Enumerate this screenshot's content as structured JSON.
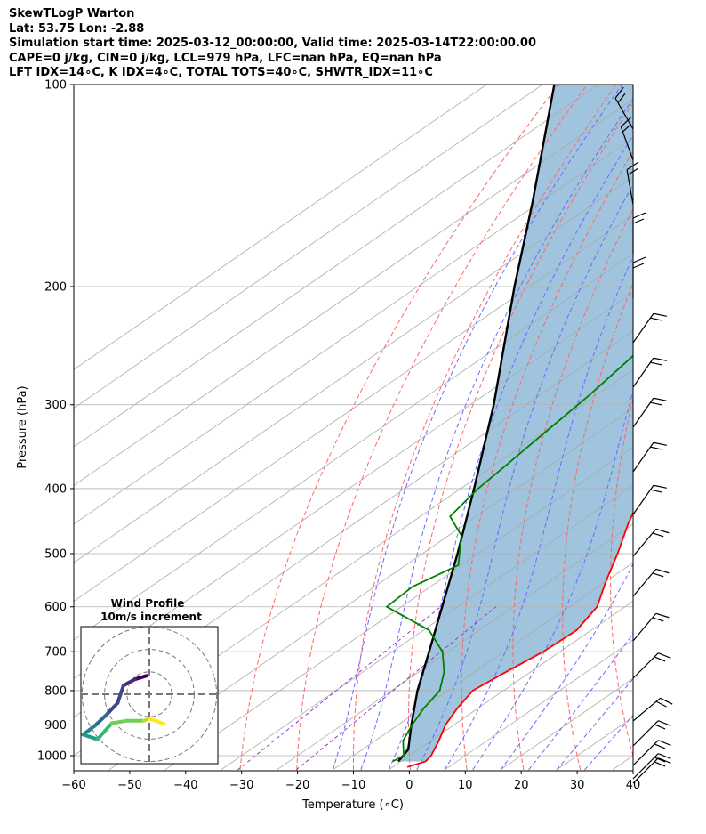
{
  "header": {
    "line1": "SkewTLogP Warton",
    "line2": "Lat: 53.75   Lon: -2.88",
    "line3": "Simulation start time: 2025-03-12_00:00:00, Valid time: 2025-03-14T22:00:00.00",
    "line4": "CAPE=0 j/kg, CIN=0 j/kg, LCL=979 hPa, LFC=nan hPa, EQ=nan hPa",
    "line5": "LFT IDX=14∘C, K IDX=4∘C, TOTAL TOTS=40∘C, SHWTR_IDX=11∘C"
  },
  "colors": {
    "temperature": "#ff0000",
    "dewpoint": "#008000",
    "parcel": "#000000",
    "cape_shade": "#a0c4de",
    "dry_adiabats": "#ff6666",
    "moist_adiabats": "#6a6aff",
    "mixing_ratio": "#9b30cc",
    "isotherms": "#aaaaaa"
  },
  "chart_data": [
    {
      "type": "line",
      "subtype": "skew-t log-p",
      "xlabel": "Temperature (∘C)",
      "ylabel": "Pressure (hPa)",
      "xlim": [
        -60,
        40
      ],
      "ylim": [
        1040,
        100
      ],
      "y_scale": "log",
      "x_ticks": [
        "−60",
        "−50",
        "−40",
        "−30",
        "−20",
        "−10",
        "0",
        "10",
        "20",
        "30",
        "40"
      ],
      "y_ticks": [
        "100",
        "200",
        "300",
        "400",
        "500",
        "600",
        "700",
        "800",
        "900",
        "1000"
      ],
      "grid": true,
      "series": [
        {
          "key": "temperature",
          "points": [
            [
              1040,
              2.6
            ],
            [
              1020,
              4.4
            ],
            [
              1000,
              3.9
            ],
            [
              950,
              1.4
            ],
            [
              900,
              -1.5
            ],
            [
              850,
              -3.7
            ],
            [
              800,
              -5.5
            ],
            [
              750,
              -4.4
            ],
            [
              700,
              -3.0
            ],
            [
              650,
              -2.6
            ],
            [
              600,
              -5.0
            ],
            [
              550,
              -10.0
            ],
            [
              500,
              -15.1
            ],
            [
              450,
              -21.1
            ],
            [
              400,
              -27.1
            ],
            [
              350,
              -35.0
            ],
            [
              310,
              -41.7
            ],
            [
              290,
              -44.0
            ],
            [
              260,
              -45.3
            ],
            [
              230,
              -47.1
            ],
            [
              210,
              -49.2
            ],
            [
              200,
              -49.5
            ],
            [
              185,
              -49.1
            ],
            [
              165,
              -48.5
            ],
            [
              150,
              -48.3
            ],
            [
              140,
              -48.7
            ],
            [
              125,
              -48.1
            ],
            [
              115,
              -46.1
            ],
            [
              100,
              -42.4
            ]
          ]
        },
        {
          "key": "dewpoint",
          "points": [
            [
              1020,
              -1.5
            ],
            [
              1000,
              -1.0
            ],
            [
              950,
              -5.0
            ],
            [
              900,
              -7.5
            ],
            [
              850,
              -9.7
            ],
            [
              800,
              -11.4
            ],
            [
              750,
              -15.5
            ],
            [
              700,
              -21.0
            ],
            [
              650,
              -29.0
            ],
            [
              600,
              -42.6
            ],
            [
              560,
              -43.2
            ],
            [
              520,
              -40.6
            ],
            [
              470,
              -47.7
            ],
            [
              440,
              -54.7
            ],
            [
              400,
              -56.9
            ],
            [
              370,
              -57.9
            ],
            [
              330,
              -59.5
            ],
            [
              290,
              -61.2
            ],
            [
              250,
              -63.8
            ],
            [
              220,
              -65.0
            ],
            [
              200,
              -66.0
            ],
            [
              180,
              -67.7
            ],
            [
              165,
              -71.0
            ],
            [
              155,
              -72.8
            ],
            [
              130,
              -71.5
            ],
            [
              100,
              -69.6
            ]
          ]
        },
        {
          "key": "parcel",
          "points": [
            [
              1020,
              -0.5
            ],
            [
              979,
              -1.8
            ],
            [
              900,
              -7.6
            ],
            [
              800,
              -15.4
            ],
            [
              700,
              -23.4
            ],
            [
              600,
              -32.7
            ],
            [
              500,
              -43.7
            ],
            [
              400,
              -57.6
            ],
            [
              300,
              -75.8
            ],
            [
              200,
              -102.7
            ],
            [
              150,
              -121.2
            ],
            [
              100,
              -147.9
            ]
          ]
        }
      ],
      "annotations": {
        "CAPE": "0 j/kg",
        "CIN": "0 j/kg",
        "LCL": "979 hPa"
      }
    },
    {
      "type": "scatter",
      "subtype": "hodograph",
      "title": "Wind Profile",
      "subtitle": "10m/s increment",
      "ring_spacing_ms": 10,
      "colormap": "viridis",
      "u_v_points": [
        [
          -0.5,
          3.2
        ],
        [
          -2.5,
          2.6
        ],
        [
          -4.5,
          1.5
        ],
        [
          -5.5,
          -1.5
        ],
        [
          -7.3,
          -3.4
        ],
        [
          -9.5,
          -5.5
        ],
        [
          -11.5,
          -7.0
        ],
        [
          -9.0,
          -7.8
        ],
        [
          -6.5,
          -5.0
        ],
        [
          -4.0,
          -4.6
        ],
        [
          -1.0,
          -4.6
        ],
        [
          0.0,
          -4.2
        ],
        [
          2.5,
          -5.1
        ]
      ]
    },
    {
      "type": "scatter",
      "subtype": "wind-barbs",
      "note": "barbs plotted along right edge, drawn as marks"
    }
  ]
}
